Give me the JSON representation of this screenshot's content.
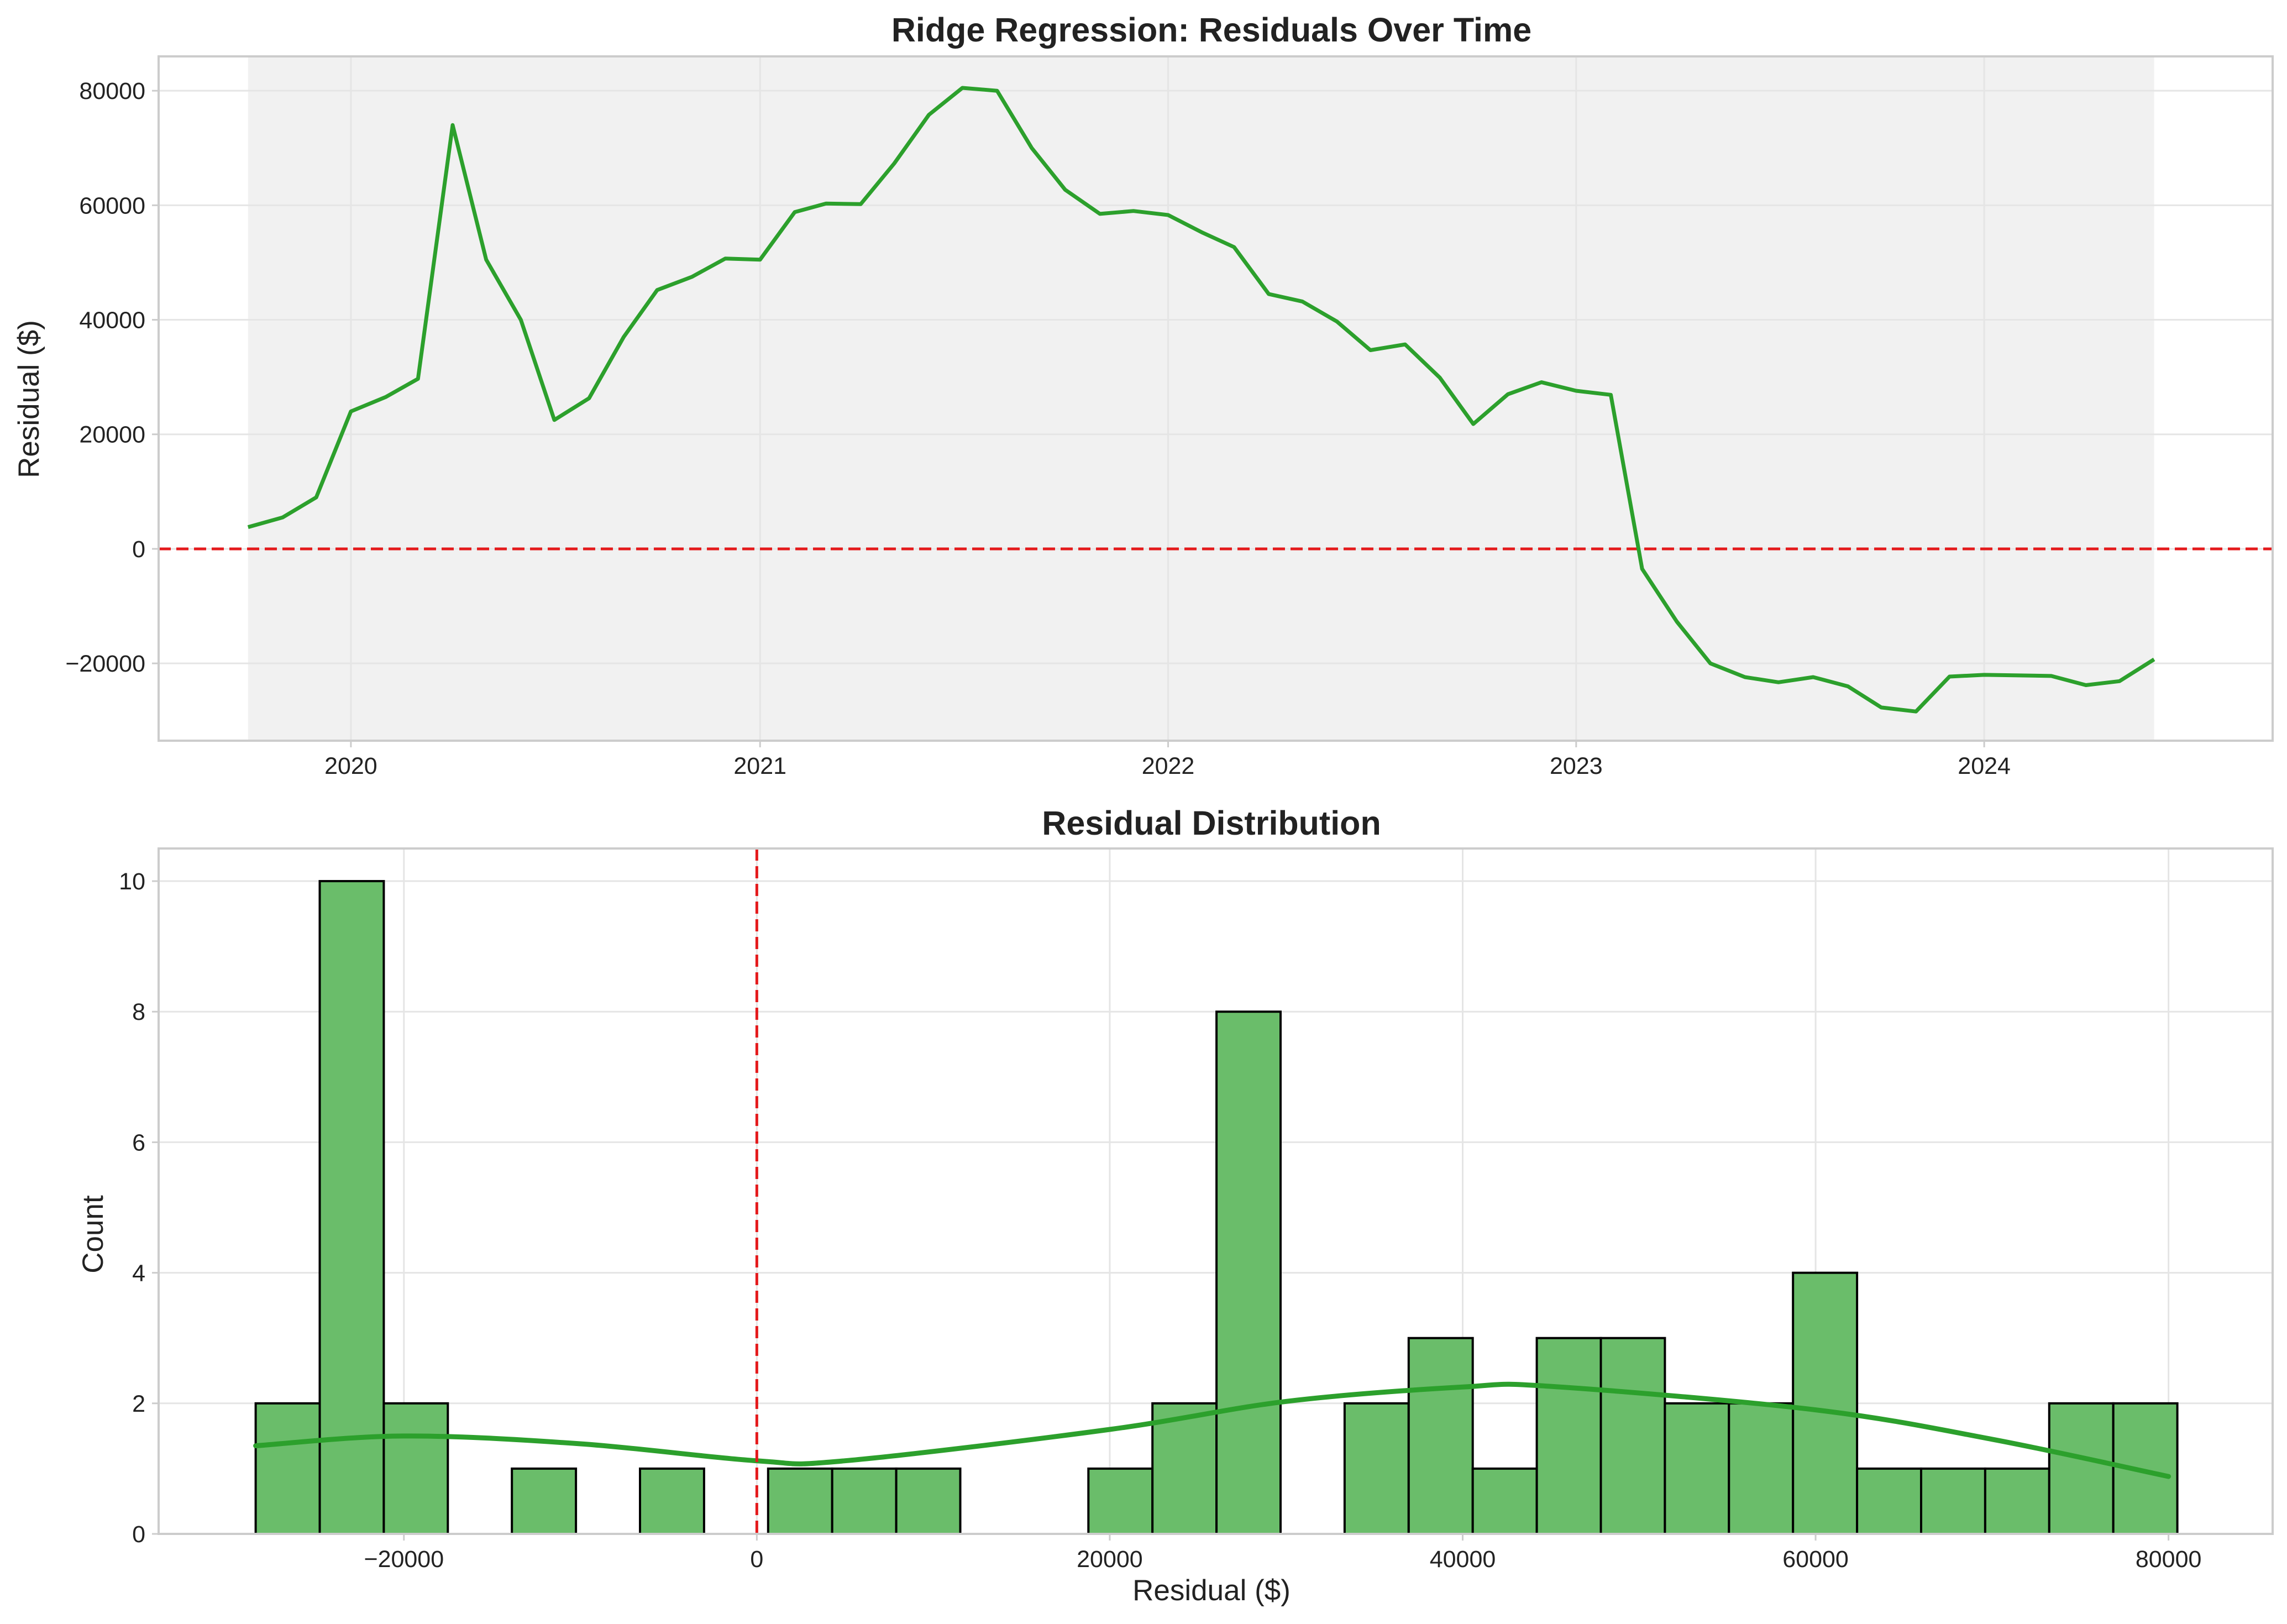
{
  "chart_data": [
    {
      "type": "line",
      "title": "Ridge Regression: Residuals Over Time",
      "xlabel": "",
      "ylabel": "Residual ($)",
      "x_tick_labels": [
        "2020",
        "2021",
        "2022",
        "2023",
        "2024"
      ],
      "y_tick_labels": [
        "−20000",
        "0",
        "20000",
        "40000",
        "60000",
        "80000"
      ],
      "y_ticks": [
        -20000,
        0,
        20000,
        40000,
        60000,
        80000
      ],
      "ylim": [
        -33500,
        86000
      ],
      "xlim": [
        "2019-07-13",
        "2024-09-15"
      ],
      "grid": true,
      "shaded_span": [
        "2019-10-01",
        "2024-06-01"
      ],
      "reference_line": {
        "y": 0,
        "style": "dashed",
        "color": "#e41a1c"
      },
      "line_color": "#2ca02c",
      "series": [
        {
          "x": [
            "2019-10-01",
            "2019-11-01",
            "2019-12-01",
            "2020-01-01",
            "2020-02-01",
            "2020-03-01",
            "2020-04-01",
            "2020-05-01",
            "2020-06-01",
            "2020-07-01",
            "2020-08-01",
            "2020-09-01",
            "2020-10-01",
            "2020-11-01",
            "2020-12-01",
            "2021-01-01",
            "2021-02-01",
            "2021-03-01",
            "2021-04-01",
            "2021-05-01",
            "2021-06-01",
            "2021-07-01",
            "2021-08-01",
            "2021-09-01",
            "2021-10-01",
            "2021-11-01",
            "2021-12-01",
            "2022-01-01",
            "2022-02-01",
            "2022-03-01",
            "2022-04-01",
            "2022-05-01",
            "2022-06-01",
            "2022-07-01",
            "2022-08-01",
            "2022-09-01",
            "2022-10-01",
            "2022-11-01",
            "2022-12-01",
            "2023-01-01",
            "2023-02-01",
            "2023-03-01",
            "2023-04-01",
            "2023-05-01",
            "2023-06-01",
            "2023-07-01",
            "2023-08-01",
            "2023-09-01",
            "2023-10-01",
            "2023-11-01",
            "2023-12-01",
            "2024-01-01",
            "2024-02-01",
            "2024-03-01",
            "2024-04-01",
            "2024-05-01",
            "2024-06-01"
          ],
          "y": [
            3800,
            5500,
            9000,
            24000,
            26500,
            29700,
            74000,
            50500,
            40000,
            22500,
            26300,
            37000,
            45200,
            47500,
            50700,
            50500,
            58800,
            60300,
            60200,
            67300,
            75800,
            80500,
            80000,
            70000,
            62700,
            58500,
            59000,
            58300,
            55200,
            52700,
            44500,
            43200,
            39700,
            34700,
            35700,
            29900,
            21800,
            27000,
            29100,
            27600,
            26900,
            -3500,
            -12700,
            -20000,
            -22400,
            -23300,
            -22400,
            -24000,
            -27700,
            -28400,
            -22300,
            -22000,
            -22100,
            -22200,
            -23800,
            -23100,
            -19300
          ]
        }
      ]
    },
    {
      "type": "bar",
      "subtype": "histogram",
      "title": "Residual Distribution",
      "xlabel": "Residual ($)",
      "ylabel": "Count",
      "x_tick_labels": [
        "−20000",
        "0",
        "20000",
        "40000",
        "60000",
        "80000"
      ],
      "x_ticks": [
        -20000,
        0,
        20000,
        40000,
        60000,
        80000
      ],
      "y_tick_labels": [
        "0",
        "2",
        "4",
        "6",
        "8",
        "10"
      ],
      "y_ticks": [
        0,
        2,
        4,
        6,
        8,
        10
      ],
      "xlim": [
        -33900,
        85900
      ],
      "ylim": [
        0,
        10.5
      ],
      "grid": true,
      "bin_edges_start": -28400,
      "bin_width": 3630,
      "counts": [
        2,
        10,
        2,
        0,
        1,
        0,
        1,
        0,
        1,
        1,
        1,
        0,
        0,
        1,
        2,
        8,
        0,
        2,
        3,
        1,
        3,
        3,
        2,
        2,
        4,
        1,
        1,
        1,
        2,
        2
      ],
      "bar_color": "#6abd6a",
      "bar_edge_color": "#000000",
      "reference_line": {
        "x": 0,
        "style": "dashed",
        "color": "#e41a1c"
      },
      "kde": {
        "color": "#2ca02c",
        "x": [
          -28400,
          -20000,
          -10000,
          0,
          5000,
          20000,
          30000,
          40000,
          45000,
          60000,
          70000,
          80000
        ],
        "y": [
          1.35,
          1.5,
          1.38,
          1.12,
          1.12,
          1.6,
          2.03,
          2.25,
          2.26,
          1.9,
          1.45,
          0.88
        ]
      }
    }
  ]
}
